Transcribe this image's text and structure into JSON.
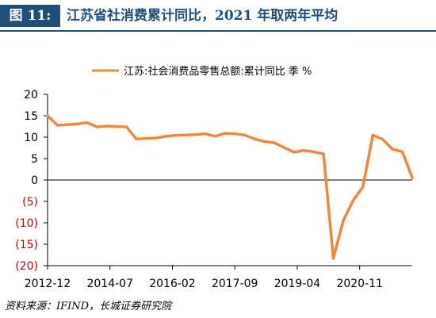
{
  "figure": {
    "label": "图 11:",
    "title": "江苏省社消费累计同比，2021 年取两年平均",
    "source": "资料来源：IFIND，长城证券研究院"
  },
  "colors": {
    "header_bg": "#1f4e79",
    "header_text": "#ffffff",
    "title_text": "#1f4e79",
    "line": "#f0873a",
    "negative_tick": "#c00000",
    "axis_text": "#000000"
  },
  "chart_data": {
    "type": "line",
    "legend": {
      "position": "top-right"
    },
    "grid": false,
    "x_tick_labels": [
      "2012-12",
      "2014-07",
      "2016-02",
      "2017-09",
      "2019-04",
      "2020-11"
    ],
    "y_tick_labels": [
      "20",
      "15",
      "10",
      "5",
      "0",
      "(5)",
      "(10)",
      "(15)",
      "(20)"
    ],
    "ylim": [
      -20,
      20
    ],
    "series": [
      {
        "name": "江苏:社会消费品零售总额:累计同比 季 %",
        "x": [
          "2012-12",
          "2013-03",
          "2013-06",
          "2013-09",
          "2013-12",
          "2014-03",
          "2014-06",
          "2014-09",
          "2014-12",
          "2015-03",
          "2015-06",
          "2015-09",
          "2015-12",
          "2016-03",
          "2016-06",
          "2016-09",
          "2016-12",
          "2017-03",
          "2017-06",
          "2017-09",
          "2017-12",
          "2018-03",
          "2018-06",
          "2018-09",
          "2018-12",
          "2019-03",
          "2019-06",
          "2019-09",
          "2019-12",
          "2020-03",
          "2020-06",
          "2020-09",
          "2020-12",
          "2021-03",
          "2021-06",
          "2021-09",
          "2021-12",
          "2022-03"
        ],
        "values": [
          15.0,
          12.8,
          12.9,
          13.1,
          13.4,
          12.4,
          12.6,
          12.5,
          12.4,
          9.6,
          9.7,
          9.8,
          10.2,
          10.4,
          10.5,
          10.6,
          10.8,
          10.2,
          10.9,
          10.8,
          10.5,
          9.6,
          9.0,
          8.7,
          7.6,
          6.5,
          6.9,
          6.6,
          6.1,
          -18.3,
          -9.5,
          -4.8,
          -1.6,
          10.5,
          9.5,
          7.2,
          6.6,
          0.5
        ]
      }
    ]
  }
}
